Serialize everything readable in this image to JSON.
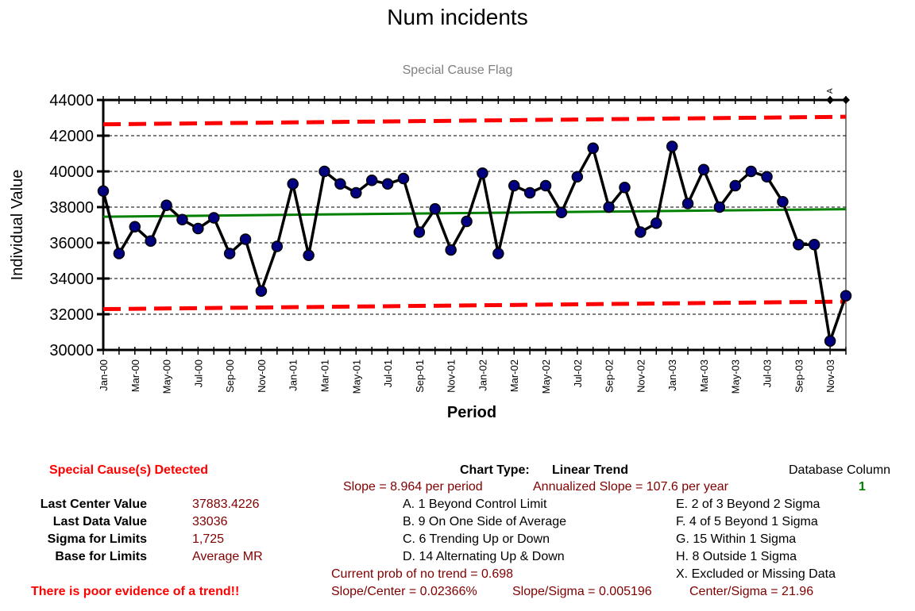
{
  "chart_data": {
    "type": "line",
    "title": "Num incidents",
    "subtitle": "Special Cause Flag",
    "xlabel": "Period",
    "ylabel": "Individual Value",
    "ylim": [
      30000,
      44000
    ],
    "yticks": [
      30000,
      32000,
      34000,
      36000,
      38000,
      40000,
      42000,
      44000
    ],
    "x": [
      "Jan-00",
      "Feb-00",
      "Mar-00",
      "Apr-00",
      "May-00",
      "Jun-00",
      "Jul-00",
      "Aug-00",
      "Sep-00",
      "Oct-00",
      "Nov-00",
      "Dec-00",
      "Jan-01",
      "Feb-01",
      "Mar-01",
      "Apr-01",
      "May-01",
      "Jun-01",
      "Jul-01",
      "Aug-01",
      "Sep-01",
      "Oct-01",
      "Nov-01",
      "Dec-01",
      "Jan-02",
      "Feb-02",
      "Mar-02",
      "Apr-02",
      "May-02",
      "Jun-02",
      "Jul-02",
      "Aug-02",
      "Sep-02",
      "Oct-02",
      "Nov-02",
      "Dec-02",
      "Jan-03",
      "Feb-03",
      "Mar-03",
      "Apr-03",
      "May-03",
      "Jun-03",
      "Jul-03",
      "Aug-03",
      "Sep-03",
      "Oct-03",
      "Nov-03",
      "Dec-03"
    ],
    "xtick_labels": [
      "Jan-00",
      "Mar-00",
      "May-00",
      "Jul-00",
      "Sep-00",
      "Nov-00",
      "Jan-01",
      "Mar-01",
      "May-01",
      "Jul-01",
      "Sep-01",
      "Nov-01",
      "Jan-02",
      "Mar-02",
      "May-02",
      "Jul-02",
      "Sep-02",
      "Nov-02",
      "Jan-03",
      "Mar-03",
      "May-03",
      "Jul-03",
      "Sep-03",
      "Nov-03"
    ],
    "series": [
      {
        "name": "Individual Value",
        "color": "#000000",
        "marker_color": "#000080",
        "values": [
          38900,
          35400,
          36900,
          36100,
          38100,
          37300,
          36800,
          37400,
          35400,
          36200,
          33300,
          35800,
          39300,
          35300,
          40000,
          39300,
          38800,
          39500,
          39300,
          39600,
          36600,
          37900,
          35600,
          37200,
          39900,
          35400,
          39200,
          38800,
          39200,
          37700,
          39700,
          41300,
          38000,
          39100,
          36600,
          37100,
          41400,
          38200,
          40100,
          38000,
          39200,
          40000,
          39700,
          38300,
          35900,
          35900,
          30500,
          33036
        ]
      },
      {
        "name": "Center",
        "color": "#008000",
        "values_linear": [
          37461.9,
          37883.4226
        ]
      },
      {
        "name": "Upper Control Limit",
        "color": "#ff0000",
        "values_linear": [
          42637,
          43059
        ]
      },
      {
        "name": "Lower Control Limit",
        "color": "#ff0000",
        "values_linear": [
          32287,
          32708
        ]
      }
    ],
    "special_cause_flags": [
      {
        "period": "Nov-03",
        "flag": "A"
      },
      {
        "period": "Dec-03",
        "flag": ""
      }
    ],
    "grid": true
  },
  "summary": {
    "special_cause_heading": "Special Cause(s) Detected",
    "last_center_label": "Last Center Value",
    "last_center_value": "37883.4226",
    "last_data_label": "Last Data Value",
    "last_data_value": "33036",
    "sigma_label": "Sigma for Limits",
    "sigma_value": "1,725",
    "base_label": "Base for Limits",
    "base_value": "Average MR",
    "trend_evidence": "There is poor evidence of a trend!!",
    "chart_type_label": "Chart Type:",
    "chart_type_value": "Linear Trend",
    "slope": "Slope = 8.964 per period",
    "annual_slope": "Annualized Slope = 107.6 per year",
    "database_column_label": "Database Column",
    "database_column_value": "1",
    "rules": {
      "a": "A.  1 Beyond Control Limit",
      "b": "B.  9 On One Side of Average",
      "c": "C.  6 Trending Up or Down",
      "d": "D.  14 Alternating  Up & Down",
      "e": "E.   2 of 3 Beyond 2 Sigma",
      "f": "F.   4 of 5 Beyond 1 Sigma",
      "g": "G.   15 Within 1 Sigma",
      "h": "H.   8 Outside 1 Sigma",
      "x": "X.   Excluded or Missing Data"
    },
    "prob_no_trend": "Current prob of no trend = 0.698",
    "slope_center": "Slope/Center = 0.02366%",
    "slope_sigma": "Slope/Sigma = 0.005196",
    "center_sigma": "Center/Sigma = 21.96"
  }
}
